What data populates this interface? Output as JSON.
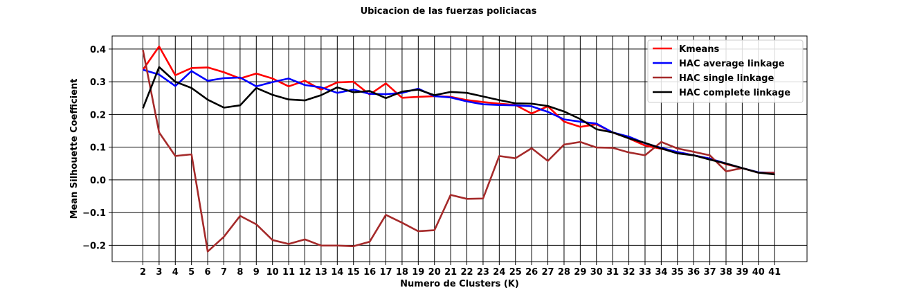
{
  "chart_data": {
    "type": "line",
    "title": "Ubicacion de las fuerzas policiacas",
    "xlabel": "Numero de Clusters (K)",
    "ylabel": "Mean Silhouette Coefficient",
    "x": [
      2,
      3,
      4,
      5,
      6,
      7,
      8,
      9,
      10,
      11,
      12,
      13,
      14,
      15,
      16,
      17,
      18,
      19,
      20,
      21,
      22,
      23,
      24,
      25,
      26,
      27,
      28,
      29,
      30,
      31,
      32,
      33,
      34,
      35,
      36,
      37,
      38,
      39,
      40,
      41
    ],
    "xlim": [
      0.1,
      43.0
    ],
    "ylim": [
      -0.25,
      0.44
    ],
    "yticks": [
      -0.2,
      -0.1,
      0.0,
      0.1,
      0.2,
      0.3,
      0.4
    ],
    "ytick_labels": [
      "−0.2",
      "−0.1",
      "0.0",
      "0.1",
      "0.2",
      "0.3",
      "0.4"
    ],
    "grid": true,
    "legend_position": "top-right",
    "series": [
      {
        "name": "Kmeans",
        "color": "#ff0000",
        "values": [
          0.337,
          0.408,
          0.32,
          0.342,
          0.344,
          0.329,
          0.31,
          0.325,
          0.31,
          0.286,
          0.303,
          0.276,
          0.298,
          0.3,
          0.261,
          0.295,
          0.251,
          0.254,
          0.256,
          0.254,
          0.244,
          0.238,
          0.233,
          0.229,
          0.203,
          0.225,
          0.178,
          0.162,
          0.17,
          0.145,
          0.127,
          0.105,
          0.095,
          0.085,
          0.075,
          0.065,
          0.048,
          0.036,
          0.022,
          0.022
        ]
      },
      {
        "name": "HAC average linkage",
        "color": "#0000ff",
        "values": [
          0.337,
          0.322,
          0.287,
          0.333,
          0.303,
          0.311,
          0.313,
          0.286,
          0.299,
          0.31,
          0.29,
          0.283,
          0.266,
          0.276,
          0.263,
          0.262,
          0.266,
          0.279,
          0.256,
          0.252,
          0.24,
          0.231,
          0.229,
          0.228,
          0.225,
          0.208,
          0.185,
          0.178,
          0.172,
          0.145,
          0.132,
          0.112,
          0.098,
          0.085,
          0.075,
          0.065,
          0.05,
          0.036,
          0.023,
          0.022
        ]
      },
      {
        "name": "HAC single linkage",
        "color": "#a52a2a",
        "values": [
          0.397,
          0.145,
          0.073,
          0.078,
          -0.219,
          -0.174,
          -0.11,
          -0.136,
          -0.184,
          -0.196,
          -0.182,
          -0.201,
          -0.201,
          -0.203,
          -0.189,
          -0.107,
          -0.131,
          -0.157,
          -0.154,
          -0.046,
          -0.058,
          -0.057,
          0.073,
          0.066,
          0.097,
          0.058,
          0.108,
          0.116,
          0.099,
          0.098,
          0.084,
          0.075,
          0.116,
          0.096,
          0.086,
          0.075,
          0.026,
          0.036,
          0.022,
          0.022
        ]
      },
      {
        "name": "HAC complete linkage",
        "color": "#000000",
        "values": [
          0.219,
          0.345,
          0.3,
          0.281,
          0.245,
          0.221,
          0.228,
          0.281,
          0.26,
          0.246,
          0.243,
          0.259,
          0.283,
          0.268,
          0.272,
          0.25,
          0.27,
          0.276,
          0.259,
          0.269,
          0.266,
          0.255,
          0.244,
          0.234,
          0.233,
          0.226,
          0.209,
          0.186,
          0.155,
          0.145,
          0.127,
          0.113,
          0.096,
          0.081,
          0.075,
          0.062,
          0.05,
          0.036,
          0.022,
          0.017
        ]
      }
    ]
  }
}
